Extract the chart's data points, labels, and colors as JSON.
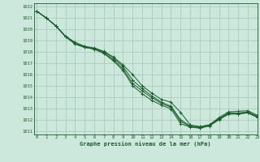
{
  "title": "Graphe pression niveau de la mer (hPa)",
  "bg_color": "#cce8dc",
  "grid_color": "#aaccbb",
  "line_color": "#1a5c2a",
  "xlim": [
    -0.3,
    23
  ],
  "ylim": [
    1010.7,
    1022.3
  ],
  "xticks": [
    0,
    1,
    2,
    3,
    4,
    5,
    6,
    7,
    8,
    9,
    10,
    11,
    12,
    13,
    14,
    15,
    16,
    17,
    18,
    19,
    20,
    21,
    22,
    23
  ],
  "yticks": [
    1011,
    1012,
    1013,
    1014,
    1015,
    1016,
    1017,
    1018,
    1019,
    1020,
    1021,
    1022
  ],
  "series": [
    [
      1021.6,
      1021.0,
      1020.3,
      1019.4,
      1018.85,
      1018.5,
      1018.35,
      1018.05,
      1017.55,
      1016.85,
      1016.0,
      1015.0,
      1014.35,
      1013.8,
      1013.55,
      1012.65,
      1011.55,
      1011.4,
      1011.55,
      1012.2,
      1012.7,
      1012.75,
      1012.8,
      1012.4
    ],
    [
      1021.6,
      1021.0,
      1020.3,
      1019.35,
      1018.75,
      1018.45,
      1018.3,
      1018.0,
      1017.45,
      1016.7,
      1015.5,
      1014.75,
      1014.1,
      1013.55,
      1013.2,
      1012.0,
      1011.45,
      1011.35,
      1011.55,
      1012.1,
      1012.6,
      1012.6,
      1012.7,
      1012.3
    ],
    [
      1021.6,
      1021.0,
      1020.3,
      1019.35,
      1018.7,
      1018.4,
      1018.25,
      1017.9,
      1017.3,
      1016.5,
      1015.2,
      1014.55,
      1013.95,
      1013.45,
      1013.1,
      1011.85,
      1011.4,
      1011.3,
      1011.5,
      1012.05,
      1012.55,
      1012.55,
      1012.65,
      1012.25
    ],
    [
      1021.6,
      1021.0,
      1020.3,
      1019.35,
      1018.7,
      1018.4,
      1018.25,
      1017.85,
      1017.2,
      1016.35,
      1015.0,
      1014.3,
      1013.7,
      1013.3,
      1012.95,
      1011.65,
      1011.35,
      1011.25,
      1011.45,
      1012.0,
      1012.5,
      1012.5,
      1012.6,
      1012.2
    ]
  ]
}
